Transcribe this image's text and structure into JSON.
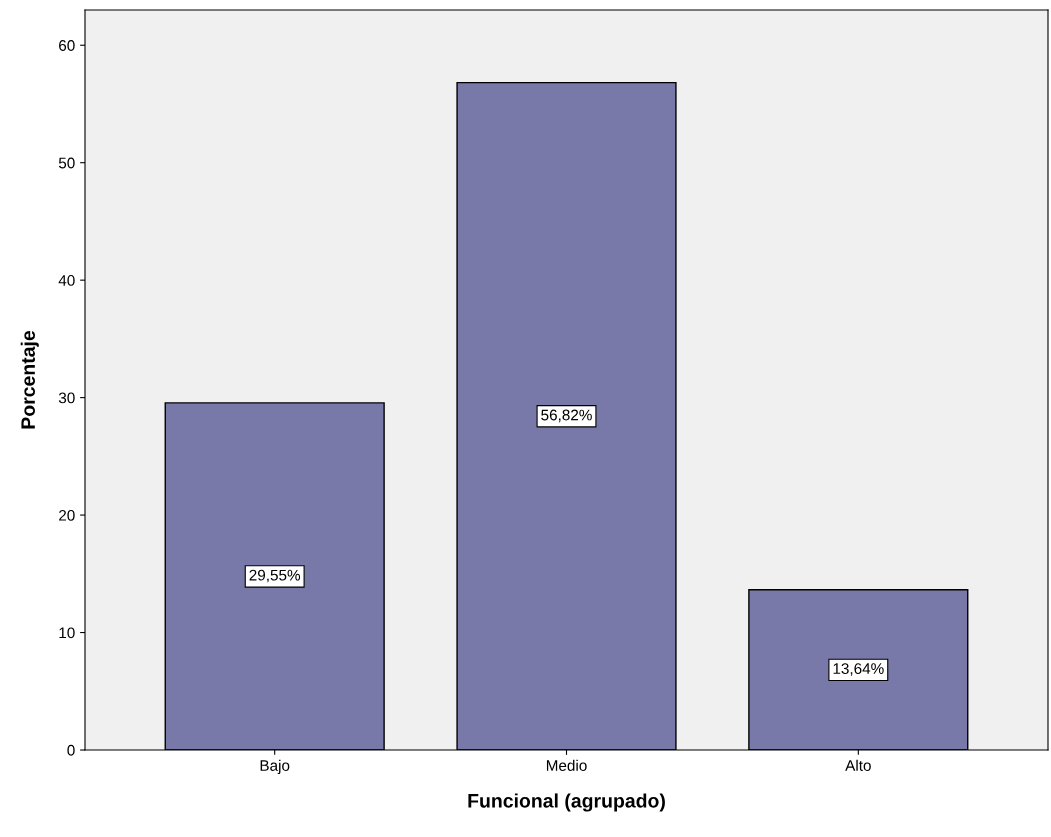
{
  "chart_data": {
    "type": "bar",
    "xlabel": "Funcional (agrupado)",
    "ylabel": "Porcentaje",
    "categories": [
      "Bajo",
      "Medio",
      "Alto"
    ],
    "values": [
      29.55,
      56.82,
      13.64
    ],
    "value_labels": [
      "29,55%",
      "56,82%",
      "13,64%"
    ],
    "color": "#7879a8",
    "ylim": [
      0,
      63
    ],
    "yticks": [
      0,
      10,
      20,
      30,
      40,
      50,
      60
    ],
    "grid": false
  }
}
